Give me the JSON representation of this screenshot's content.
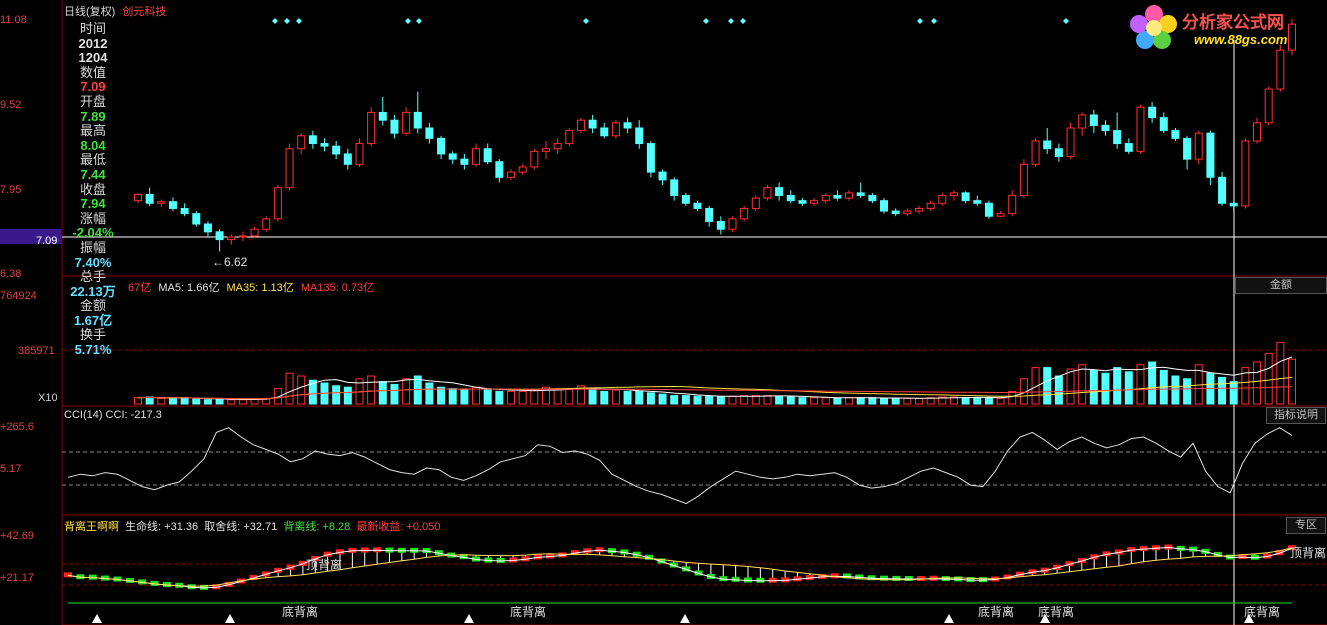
{
  "header": {
    "title": "日线(复权)",
    "stock": "创元科技"
  },
  "logo": {
    "text": "分析家公式网",
    "url": "www.88gs.com"
  },
  "price_axis": [
    "11.08",
    "9.52",
    "7.95",
    "7.09",
    "6.38"
  ],
  "info": [
    {
      "label": "时间",
      "value": "2012",
      "color": "#e0e0e0"
    },
    {
      "label": "",
      "value": "1204",
      "color": "#e0e0e0"
    },
    {
      "label": "数值",
      "value": "7.09",
      "color": "#ff4040"
    },
    {
      "label": "开盘",
      "value": "7.89",
      "color": "#40e040"
    },
    {
      "label": "最高",
      "value": "8.04",
      "color": "#40e040"
    },
    {
      "label": "最低",
      "value": "7.44",
      "color": "#40e040"
    },
    {
      "label": "收盘",
      "value": "7.94",
      "color": "#40e040"
    },
    {
      "label": "涨幅",
      "value": "-2.04%",
      "color": "#40e040"
    },
    {
      "label": "振幅",
      "value": "7.40%",
      "color": "#60e0ff"
    },
    {
      "label": "总手",
      "value": "22.13万",
      "color": "#60e0ff"
    },
    {
      "label": "金额",
      "value": "1.67亿",
      "color": "#60e0ff"
    },
    {
      "label": "换手",
      "value": "5.71%",
      "color": "#60e0ff"
    }
  ],
  "low_label": "6.62",
  "volume": {
    "title_prefix": "67亿",
    "ma5": "MA5: 1.66亿",
    "ma35": "MA35: 1.13亿",
    "ma135": "MA135: 0.73亿",
    "axis": [
      "764924",
      "385971",
      "X10"
    ],
    "button": "金额"
  },
  "cci": {
    "title": "CCI(14) CCI: -217.3",
    "axis": [
      "+265.6",
      "5.17"
    ],
    "button": "指标说明"
  },
  "div": {
    "name": "背离王啊啊",
    "life": "生命线: +31.36",
    "sell": "取舍线: +32.71",
    "bei": "背离线: +8.28",
    "newest": "最新收益: +0.050",
    "axis": [
      "+42.69",
      "+21.17"
    ],
    "button": "专区",
    "labels": {
      "top1": "顶背离",
      "top2": "顶背离",
      "bottom": [
        "底背离",
        "底背离",
        "底背离",
        "底背离",
        "底背离"
      ]
    }
  },
  "colors": {
    "up": "#ff3030",
    "down": "#54ffff",
    "grid": "#8a0000"
  },
  "chart_data": {
    "type": "candlestick",
    "candles": [
      [
        7.6,
        7.75,
        7.55,
        7.72
      ],
      [
        7.72,
        7.85,
        7.5,
        7.55
      ],
      [
        7.55,
        7.62,
        7.48,
        7.58
      ],
      [
        7.58,
        7.66,
        7.4,
        7.45
      ],
      [
        7.45,
        7.55,
        7.3,
        7.35
      ],
      [
        7.35,
        7.4,
        7.1,
        7.15
      ],
      [
        7.15,
        7.2,
        6.9,
        7.0
      ],
      [
        7.0,
        7.05,
        6.62,
        6.85
      ],
      [
        6.85,
        6.95,
        6.75,
        6.9
      ],
      [
        6.9,
        7.0,
        6.82,
        6.92
      ],
      [
        6.92,
        7.1,
        6.88,
        7.05
      ],
      [
        7.05,
        7.3,
        7.0,
        7.25
      ],
      [
        7.25,
        7.9,
        7.2,
        7.85
      ],
      [
        7.85,
        8.7,
        7.8,
        8.6
      ],
      [
        8.6,
        8.9,
        8.5,
        8.85
      ],
      [
        8.85,
        8.95,
        8.6,
        8.7
      ],
      [
        8.7,
        8.8,
        8.55,
        8.65
      ],
      [
        8.65,
        8.75,
        8.4,
        8.5
      ],
      [
        8.5,
        8.6,
        8.2,
        8.3
      ],
      [
        8.3,
        8.8,
        8.25,
        8.7
      ],
      [
        8.7,
        9.4,
        8.65,
        9.3
      ],
      [
        9.3,
        9.6,
        9.05,
        9.15
      ],
      [
        9.15,
        9.25,
        8.8,
        8.9
      ],
      [
        8.9,
        9.4,
        8.85,
        9.3
      ],
      [
        9.3,
        9.7,
        8.9,
        9.0
      ],
      [
        9.0,
        9.1,
        8.7,
        8.8
      ],
      [
        8.8,
        8.85,
        8.4,
        8.5
      ],
      [
        8.5,
        8.55,
        8.3,
        8.4
      ],
      [
        8.4,
        8.5,
        8.2,
        8.3
      ],
      [
        8.3,
        8.7,
        8.25,
        8.6
      ],
      [
        8.6,
        8.7,
        8.3,
        8.35
      ],
      [
        8.35,
        8.4,
        7.95,
        8.05
      ],
      [
        8.05,
        8.2,
        8.0,
        8.15
      ],
      [
        8.15,
        8.3,
        8.1,
        8.25
      ],
      [
        8.25,
        8.6,
        8.2,
        8.55
      ],
      [
        8.55,
        8.75,
        8.4,
        8.6
      ],
      [
        8.6,
        8.8,
        8.5,
        8.7
      ],
      [
        8.7,
        9.0,
        8.65,
        8.95
      ],
      [
        8.95,
        9.2,
        8.9,
        9.15
      ],
      [
        9.15,
        9.25,
        8.9,
        9.0
      ],
      [
        9.0,
        9.1,
        8.8,
        8.85
      ],
      [
        8.85,
        9.15,
        8.8,
        9.1
      ],
      [
        9.1,
        9.2,
        8.9,
        9.0
      ],
      [
        9.0,
        9.15,
        8.6,
        8.7
      ],
      [
        8.7,
        8.75,
        8.05,
        8.15
      ],
      [
        8.15,
        8.2,
        7.9,
        8.0
      ],
      [
        8.0,
        8.05,
        7.6,
        7.7
      ],
      [
        7.7,
        7.75,
        7.5,
        7.55
      ],
      [
        7.55,
        7.6,
        7.4,
        7.45
      ],
      [
        7.45,
        7.5,
        7.1,
        7.2
      ],
      [
        7.2,
        7.3,
        6.95,
        7.05
      ],
      [
        7.05,
        7.3,
        7.0,
        7.25
      ],
      [
        7.25,
        7.5,
        7.2,
        7.45
      ],
      [
        7.45,
        7.7,
        7.4,
        7.65
      ],
      [
        7.65,
        7.9,
        7.6,
        7.85
      ],
      [
        7.85,
        7.95,
        7.6,
        7.7
      ],
      [
        7.7,
        7.8,
        7.55,
        7.6
      ],
      [
        7.6,
        7.65,
        7.5,
        7.55
      ],
      [
        7.55,
        7.65,
        7.5,
        7.6
      ],
      [
        7.6,
        7.75,
        7.55,
        7.7
      ],
      [
        7.7,
        7.8,
        7.6,
        7.65
      ],
      [
        7.65,
        7.8,
        7.6,
        7.75
      ],
      [
        7.75,
        7.95,
        7.65,
        7.7
      ],
      [
        7.7,
        7.75,
        7.55,
        7.6
      ],
      [
        7.6,
        7.65,
        7.35,
        7.4
      ],
      [
        7.4,
        7.45,
        7.3,
        7.35
      ],
      [
        7.35,
        7.45,
        7.3,
        7.4
      ],
      [
        7.4,
        7.5,
        7.35,
        7.45
      ],
      [
        7.45,
        7.6,
        7.4,
        7.55
      ],
      [
        7.55,
        7.75,
        7.5,
        7.7
      ],
      [
        7.7,
        7.8,
        7.6,
        7.75
      ],
      [
        7.75,
        7.78,
        7.55,
        7.6
      ],
      [
        7.6,
        7.7,
        7.5,
        7.55
      ],
      [
        7.55,
        7.6,
        7.25,
        7.3
      ],
      [
        7.3,
        7.4,
        7.28,
        7.35
      ],
      [
        7.35,
        7.8,
        7.3,
        7.7
      ],
      [
        7.7,
        8.4,
        7.65,
        8.3
      ],
      [
        8.3,
        8.8,
        8.25,
        8.75
      ],
      [
        8.75,
        9.0,
        8.5,
        8.6
      ],
      [
        8.6,
        8.7,
        8.35,
        8.45
      ],
      [
        8.45,
        9.1,
        8.4,
        9.0
      ],
      [
        9.0,
        9.3,
        8.85,
        9.25
      ],
      [
        9.25,
        9.35,
        8.9,
        9.05
      ],
      [
        9.05,
        9.15,
        8.85,
        8.95
      ],
      [
        8.95,
        9.3,
        8.6,
        8.7
      ],
      [
        8.7,
        8.8,
        8.5,
        8.55
      ],
      [
        8.55,
        9.45,
        8.5,
        9.4
      ],
      [
        9.4,
        9.5,
        9.1,
        9.2
      ],
      [
        9.2,
        9.3,
        8.9,
        8.95
      ],
      [
        8.95,
        9.0,
        8.75,
        8.8
      ],
      [
        8.8,
        8.85,
        8.2,
        8.4
      ],
      [
        8.4,
        8.95,
        8.3,
        8.9
      ],
      [
        8.9,
        8.95,
        7.9,
        8.05
      ],
      [
        8.05,
        8.15,
        7.5,
        7.55
      ],
      [
        7.55,
        7.6,
        7.4,
        7.5
      ],
      [
        7.5,
        8.8,
        7.45,
        8.75
      ],
      [
        8.75,
        9.2,
        8.7,
        9.1
      ],
      [
        9.1,
        9.8,
        9.05,
        9.75
      ],
      [
        9.75,
        10.6,
        9.7,
        10.5
      ],
      [
        10.5,
        11.1,
        10.4,
        11.0
      ]
    ],
    "volume": [
      0.45,
      0.5,
      0.4,
      0.45,
      0.4,
      0.35,
      0.3,
      0.35,
      0.3,
      0.3,
      0.35,
      0.4,
      1.1,
      2.2,
      2.0,
      1.7,
      1.5,
      1.3,
      1.2,
      1.8,
      2.0,
      1.6,
      1.4,
      1.8,
      2.0,
      1.5,
      1.2,
      1.1,
      1.0,
      1.2,
      1.0,
      0.9,
      0.9,
      0.9,
      1.0,
      1.2,
      1.0,
      1.1,
      1.3,
      1.0,
      0.9,
      1.0,
      0.9,
      0.9,
      0.8,
      0.7,
      0.6,
      0.6,
      0.55,
      0.55,
      0.5,
      0.55,
      0.6,
      0.6,
      0.6,
      0.55,
      0.5,
      0.45,
      0.45,
      0.45,
      0.4,
      0.45,
      0.45,
      0.45,
      0.4,
      0.4,
      0.4,
      0.4,
      0.45,
      0.5,
      0.5,
      0.45,
      0.45,
      0.45,
      0.4,
      0.9,
      1.8,
      2.6,
      2.6,
      2.0,
      2.5,
      2.8,
      2.4,
      2.2,
      2.6,
      2.3,
      2.8,
      3.0,
      2.4,
      2.0,
      1.8,
      2.8,
      2.2,
      1.9,
      1.6,
      2.6,
      3.0,
      3.6,
      4.4,
      3.2
    ],
    "cci": [
      -60,
      -40,
      -50,
      -30,
      -40,
      -80,
      -120,
      -140,
      -110,
      -90,
      -20,
      60,
      230,
      260,
      200,
      150,
      120,
      90,
      40,
      60,
      110,
      90,
      80,
      100,
      70,
      30,
      -10,
      -30,
      -40,
      0,
      -10,
      -60,
      -80,
      -50,
      -10,
      40,
      60,
      80,
      150,
      140,
      100,
      110,
      90,
      50,
      -40,
      -80,
      -120,
      -150,
      -170,
      -200,
      -230,
      -180,
      -120,
      -70,
      -20,
      -40,
      -60,
      -70,
      -60,
      -40,
      -50,
      -40,
      -30,
      -60,
      -110,
      -130,
      -120,
      -100,
      -60,
      -20,
      0,
      -30,
      -60,
      -110,
      -120,
      -20,
      110,
      200,
      230,
      180,
      120,
      170,
      200,
      160,
      130,
      150,
      190,
      200,
      160,
      110,
      70,
      160,
      -20,
      -120,
      -160,
      30,
      160,
      220,
      260,
      210
    ]
  }
}
